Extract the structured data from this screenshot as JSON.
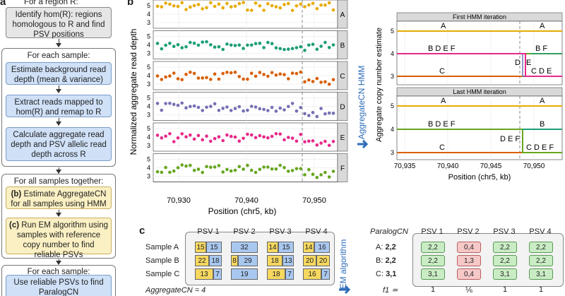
{
  "panel_a": {
    "letter": "a",
    "top_text": "For a region R:",
    "identify": "Identify hom(R): regions homologous to R and find PSV positions",
    "sample_group_title": "For each sample:",
    "estimate_depth": "Estimate background read depth (mean & variance)",
    "extract_reads": "Extract reads mapped to hom(R) and remap to R",
    "calc_depth": "Calculate aggregate read depth and PSV allelic read depth across R",
    "all_samples_title": "For all samples together:",
    "step_b_label": "(b)",
    "step_b_text": "Estimate AggregateCN for all samples using HMM",
    "step_c_label": "(c)",
    "step_c_text": "Run EM algorithm using samples with reference copy number to find reliable PSVs",
    "last_group_title": "For each sample:",
    "last_step": "Use reliable PSVs to find ParalogCN"
  },
  "panel_b": {
    "letter": "b",
    "ylabel": "Normalized aggregate read depth",
    "xlabel": "Position (chr5, kb)",
    "x_ticks": [
      "70,930",
      "70,940",
      "70,950"
    ],
    "facets": [
      "A",
      "B",
      "C",
      "D",
      "E",
      "F"
    ],
    "facet_colors": [
      "#e6ab02",
      "#1b9e77",
      "#d95f02",
      "#7570b3",
      "#e7298a",
      "#66a61e"
    ],
    "y_ticks": [
      "3",
      "4",
      "5"
    ],
    "arrow_label": "AggregateCN HMM"
  },
  "panel_hmm": {
    "ylabel": "Aggregate copy number estimate",
    "xlabel": "Position (chr5, kb)",
    "x_ticks": [
      "70,935",
      "70,940",
      "70,945",
      "70,950"
    ],
    "top_title": "First HMM iteration",
    "bottom_title": "Last HMM iteration",
    "y_ticks": [
      "3",
      "4",
      "5"
    ],
    "top_labels": [
      "A",
      "A",
      "B D E F",
      "B F",
      "D",
      "E",
      "C",
      "C D E"
    ],
    "bottom_labels": [
      "A",
      "A",
      "B D E F",
      "B",
      "D E F",
      "C",
      "C D E F"
    ]
  },
  "panel_c": {
    "letter": "c",
    "psv_headers": [
      "PSV 1",
      "PSV 2",
      "PSV 3",
      "PSV 4"
    ],
    "samples": [
      {
        "name": "Sample A",
        "cells": [
          [
            "15",
            "15"
          ],
          [
            "",
            "32"
          ],
          [
            "14",
            "15"
          ],
          [
            "14",
            "16"
          ]
        ]
      },
      {
        "name": "Sample B",
        "cells": [
          [
            "22",
            "18"
          ],
          [
            "8",
            "29"
          ],
          [
            "18",
            "13"
          ],
          [
            "20",
            "20"
          ]
        ]
      },
      {
        "name": "Sample C",
        "cells": [
          [
            "13",
            "7"
          ],
          [
            "",
            "19"
          ],
          [
            "18",
            "7"
          ],
          [
            "16",
            "7"
          ]
        ]
      }
    ],
    "aggregate_cn": "AggregateCN = 4",
    "em_label": "EM algorithm",
    "paralog_header": "ParalogCN",
    "paralog_rows": [
      {
        "label": "A: ",
        "value": "2,2",
        "cells": [
          "2,2",
          "0,4",
          "2,2",
          "2,2"
        ]
      },
      {
        "label": "B: ",
        "value": "2,2",
        "cells": [
          "2,2",
          "1,3",
          "2,2",
          "2,2"
        ]
      },
      {
        "label": "C: ",
        "value": "3,1",
        "cells": [
          "3,1",
          "0,4",
          "3,1",
          "3,1"
        ]
      }
    ],
    "f1_label": "f1 ≃",
    "f1_values": [
      "1",
      "⅙",
      "1",
      "1"
    ]
  }
}
